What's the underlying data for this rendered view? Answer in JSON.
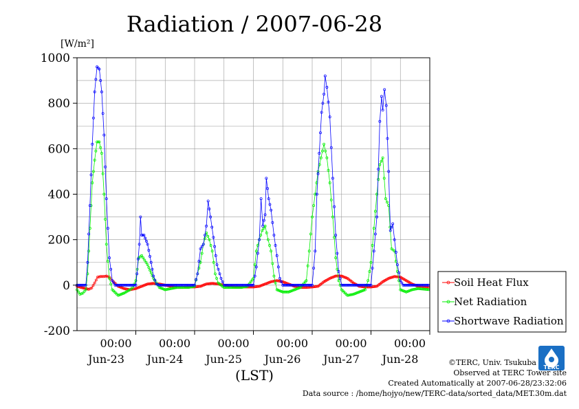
{
  "chart_data": {
    "type": "line",
    "title": "Radiation / 2007-06-28",
    "ylabel": "[W/m²]",
    "xlabel": "(LST)",
    "ylim": [
      -200,
      1000
    ],
    "yticks": [
      -200,
      0,
      200,
      400,
      600,
      800,
      1000
    ],
    "x_unit": "days since 2007-06-22 00:00 LST",
    "xlim": [
      0.0,
      6.0
    ],
    "day_labels": [
      {
        "time": "00:00",
        "date": "Jun-23"
      },
      {
        "time": "00:00",
        "date": "Jun-24"
      },
      {
        "time": "00:00",
        "date": "Jun-25"
      },
      {
        "time": "00:00",
        "date": "Jun-26"
      },
      {
        "time": "00:00",
        "date": "Jun-27"
      },
      {
        "time": "00:00",
        "date": "Jun-28"
      }
    ],
    "grid": true,
    "legend_position": "right",
    "series": [
      {
        "name": "Soil Heat Flux",
        "color": "#ff0000",
        "points": [
          [
            0.0,
            -5
          ],
          [
            0.1,
            -12
          ],
          [
            0.2,
            -18
          ],
          [
            0.25,
            -12
          ],
          [
            0.3,
            10
          ],
          [
            0.35,
            35
          ],
          [
            0.4,
            38
          ],
          [
            0.45,
            38
          ],
          [
            0.5,
            40
          ],
          [
            0.55,
            35
          ],
          [
            0.6,
            20
          ],
          [
            0.7,
            -5
          ],
          [
            0.8,
            -15
          ],
          [
            0.9,
            -20
          ],
          [
            1.0,
            -15
          ],
          [
            1.1,
            -5
          ],
          [
            1.2,
            5
          ],
          [
            1.3,
            8
          ],
          [
            1.4,
            5
          ],
          [
            1.5,
            0
          ],
          [
            1.6,
            -5
          ],
          [
            1.7,
            -10
          ],
          [
            1.8,
            -10
          ],
          [
            1.9,
            -8
          ],
          [
            2.0,
            -8
          ],
          [
            2.1,
            -5
          ],
          [
            2.2,
            5
          ],
          [
            2.3,
            8
          ],
          [
            2.4,
            5
          ],
          [
            2.5,
            0
          ],
          [
            2.6,
            -5
          ],
          [
            2.7,
            -8
          ],
          [
            2.8,
            -8
          ],
          [
            2.9,
            -8
          ],
          [
            3.0,
            -8
          ],
          [
            3.1,
            -5
          ],
          [
            3.2,
            5
          ],
          [
            3.3,
            15
          ],
          [
            3.4,
            20
          ],
          [
            3.5,
            15
          ],
          [
            3.6,
            5
          ],
          [
            3.7,
            -5
          ],
          [
            3.8,
            -10
          ],
          [
            3.9,
            -10
          ],
          [
            4.0,
            -8
          ],
          [
            4.1,
            -5
          ],
          [
            4.2,
            15
          ],
          [
            4.3,
            30
          ],
          [
            4.4,
            40
          ],
          [
            4.5,
            40
          ],
          [
            4.6,
            30
          ],
          [
            4.7,
            10
          ],
          [
            4.8,
            -5
          ],
          [
            4.9,
            -8
          ],
          [
            5.0,
            -8
          ],
          [
            5.1,
            -5
          ],
          [
            5.2,
            15
          ],
          [
            5.3,
            30
          ],
          [
            5.4,
            38
          ],
          [
            5.5,
            35
          ],
          [
            5.6,
            20
          ],
          [
            5.7,
            5
          ],
          [
            5.8,
            -5
          ],
          [
            5.9,
            -8
          ],
          [
            6.0,
            -8
          ]
        ]
      },
      {
        "name": "Net Radiation",
        "color": "#00ee00",
        "points": [
          [
            0.0,
            -20
          ],
          [
            0.05,
            -40
          ],
          [
            0.1,
            -35
          ],
          [
            0.15,
            -20
          ],
          [
            0.18,
            50
          ],
          [
            0.22,
            250
          ],
          [
            0.26,
            450
          ],
          [
            0.3,
            550
          ],
          [
            0.34,
            630
          ],
          [
            0.38,
            630
          ],
          [
            0.42,
            580
          ],
          [
            0.46,
            400
          ],
          [
            0.5,
            180
          ],
          [
            0.55,
            30
          ],
          [
            0.6,
            -20
          ],
          [
            0.7,
            -45
          ],
          [
            0.8,
            -35
          ],
          [
            0.9,
            -20
          ],
          [
            0.95,
            -10
          ],
          [
            1.0,
            20
          ],
          [
            1.05,
            120
          ],
          [
            1.1,
            130
          ],
          [
            1.15,
            110
          ],
          [
            1.2,
            90
          ],
          [
            1.3,
            30
          ],
          [
            1.4,
            -10
          ],
          [
            1.5,
            -20
          ],
          [
            1.6,
            -15
          ],
          [
            1.7,
            -10
          ],
          [
            1.8,
            -10
          ],
          [
            1.9,
            -10
          ],
          [
            2.0,
            -5
          ],
          [
            2.05,
            50
          ],
          [
            2.1,
            100
          ],
          [
            2.15,
            180
          ],
          [
            2.2,
            230
          ],
          [
            2.25,
            200
          ],
          [
            2.3,
            150
          ],
          [
            2.35,
            50
          ],
          [
            2.4,
            10
          ],
          [
            2.5,
            -10
          ],
          [
            2.6,
            -10
          ],
          [
            2.7,
            -10
          ],
          [
            2.8,
            -10
          ],
          [
            2.9,
            -5
          ],
          [
            3.0,
            30
          ],
          [
            3.05,
            150
          ],
          [
            3.1,
            200
          ],
          [
            3.15,
            240
          ],
          [
            3.2,
            260
          ],
          [
            3.25,
            200
          ],
          [
            3.3,
            150
          ],
          [
            3.35,
            40
          ],
          [
            3.4,
            -20
          ],
          [
            3.5,
            -30
          ],
          [
            3.6,
            -30
          ],
          [
            3.7,
            -20
          ],
          [
            3.8,
            -10
          ],
          [
            3.9,
            20
          ],
          [
            3.95,
            150
          ],
          [
            4.0,
            300
          ],
          [
            4.05,
            400
          ],
          [
            4.1,
            500
          ],
          [
            4.15,
            560
          ],
          [
            4.2,
            620
          ],
          [
            4.25,
            560
          ],
          [
            4.3,
            450
          ],
          [
            4.35,
            300
          ],
          [
            4.4,
            120
          ],
          [
            4.45,
            20
          ],
          [
            4.5,
            -20
          ],
          [
            4.6,
            -45
          ],
          [
            4.7,
            -40
          ],
          [
            4.8,
            -30
          ],
          [
            4.9,
            -20
          ],
          [
            4.95,
            20
          ],
          [
            5.0,
            100
          ],
          [
            5.05,
            250
          ],
          [
            5.1,
            400
          ],
          [
            5.15,
            530
          ],
          [
            5.2,
            560
          ],
          [
            5.25,
            380
          ],
          [
            5.3,
            350
          ],
          [
            5.35,
            160
          ],
          [
            5.4,
            150
          ],
          [
            5.45,
            60
          ],
          [
            5.5,
            -20
          ],
          [
            5.6,
            -30
          ],
          [
            5.7,
            -20
          ],
          [
            5.8,
            -15
          ],
          [
            6.0,
            -20
          ]
        ]
      },
      {
        "name": "Shortwave Radiation",
        "color": "#0000ff",
        "points": [
          [
            0.0,
            0
          ],
          [
            0.15,
            0
          ],
          [
            0.18,
            100
          ],
          [
            0.22,
            350
          ],
          [
            0.26,
            620
          ],
          [
            0.3,
            850
          ],
          [
            0.34,
            960
          ],
          [
            0.38,
            950
          ],
          [
            0.42,
            850
          ],
          [
            0.46,
            660
          ],
          [
            0.5,
            380
          ],
          [
            0.55,
            120
          ],
          [
            0.6,
            20
          ],
          [
            0.65,
            0
          ],
          [
            1.0,
            0
          ],
          [
            1.02,
            50
          ],
          [
            1.06,
            180
          ],
          [
            1.08,
            300
          ],
          [
            1.1,
            220
          ],
          [
            1.14,
            220
          ],
          [
            1.2,
            180
          ],
          [
            1.26,
            100
          ],
          [
            1.3,
            40
          ],
          [
            1.35,
            5
          ],
          [
            1.4,
            0
          ],
          [
            2.0,
            0
          ],
          [
            2.05,
            50
          ],
          [
            2.1,
            160
          ],
          [
            2.15,
            180
          ],
          [
            2.2,
            260
          ],
          [
            2.23,
            370
          ],
          [
            2.27,
            300
          ],
          [
            2.32,
            210
          ],
          [
            2.38,
            90
          ],
          [
            2.45,
            30
          ],
          [
            2.5,
            0
          ],
          [
            3.0,
            0
          ],
          [
            3.05,
            80
          ],
          [
            3.1,
            200
          ],
          [
            3.13,
            380
          ],
          [
            3.16,
            260
          ],
          [
            3.2,
            310
          ],
          [
            3.22,
            470
          ],
          [
            3.26,
            380
          ],
          [
            3.3,
            330
          ],
          [
            3.35,
            220
          ],
          [
            3.4,
            130
          ],
          [
            3.45,
            30
          ],
          [
            3.5,
            0
          ],
          [
            4.0,
            0
          ],
          [
            4.05,
            150
          ],
          [
            4.08,
            400
          ],
          [
            4.12,
            580
          ],
          [
            4.16,
            760
          ],
          [
            4.2,
            840
          ],
          [
            4.22,
            920
          ],
          [
            4.25,
            870
          ],
          [
            4.3,
            740
          ],
          [
            4.35,
            470
          ],
          [
            4.4,
            220
          ],
          [
            4.45,
            60
          ],
          [
            4.5,
            0
          ],
          [
            5.0,
            0
          ],
          [
            5.05,
            150
          ],
          [
            5.1,
            300
          ],
          [
            5.15,
            720
          ],
          [
            5.18,
            830
          ],
          [
            5.2,
            770
          ],
          [
            5.23,
            860
          ],
          [
            5.26,
            790
          ],
          [
            5.3,
            500
          ],
          [
            5.33,
            240
          ],
          [
            5.37,
            270
          ],
          [
            5.4,
            200
          ],
          [
            5.45,
            90
          ],
          [
            5.5,
            20
          ],
          [
            5.55,
            0
          ],
          [
            6.0,
            0
          ]
        ]
      }
    ]
  },
  "footer": {
    "copyright": "©TERC, Univ. Tsukuba",
    "observed": "Observed at TERC Tower site",
    "created": "Created Automatically at 2007-06-28/23:32:06",
    "source": "Data source : /home/hojyo/new/TERC-data/sorted_data/MET.30m.dat"
  },
  "logo": {
    "text": "TERC",
    "color": "#1a6fc4"
  }
}
